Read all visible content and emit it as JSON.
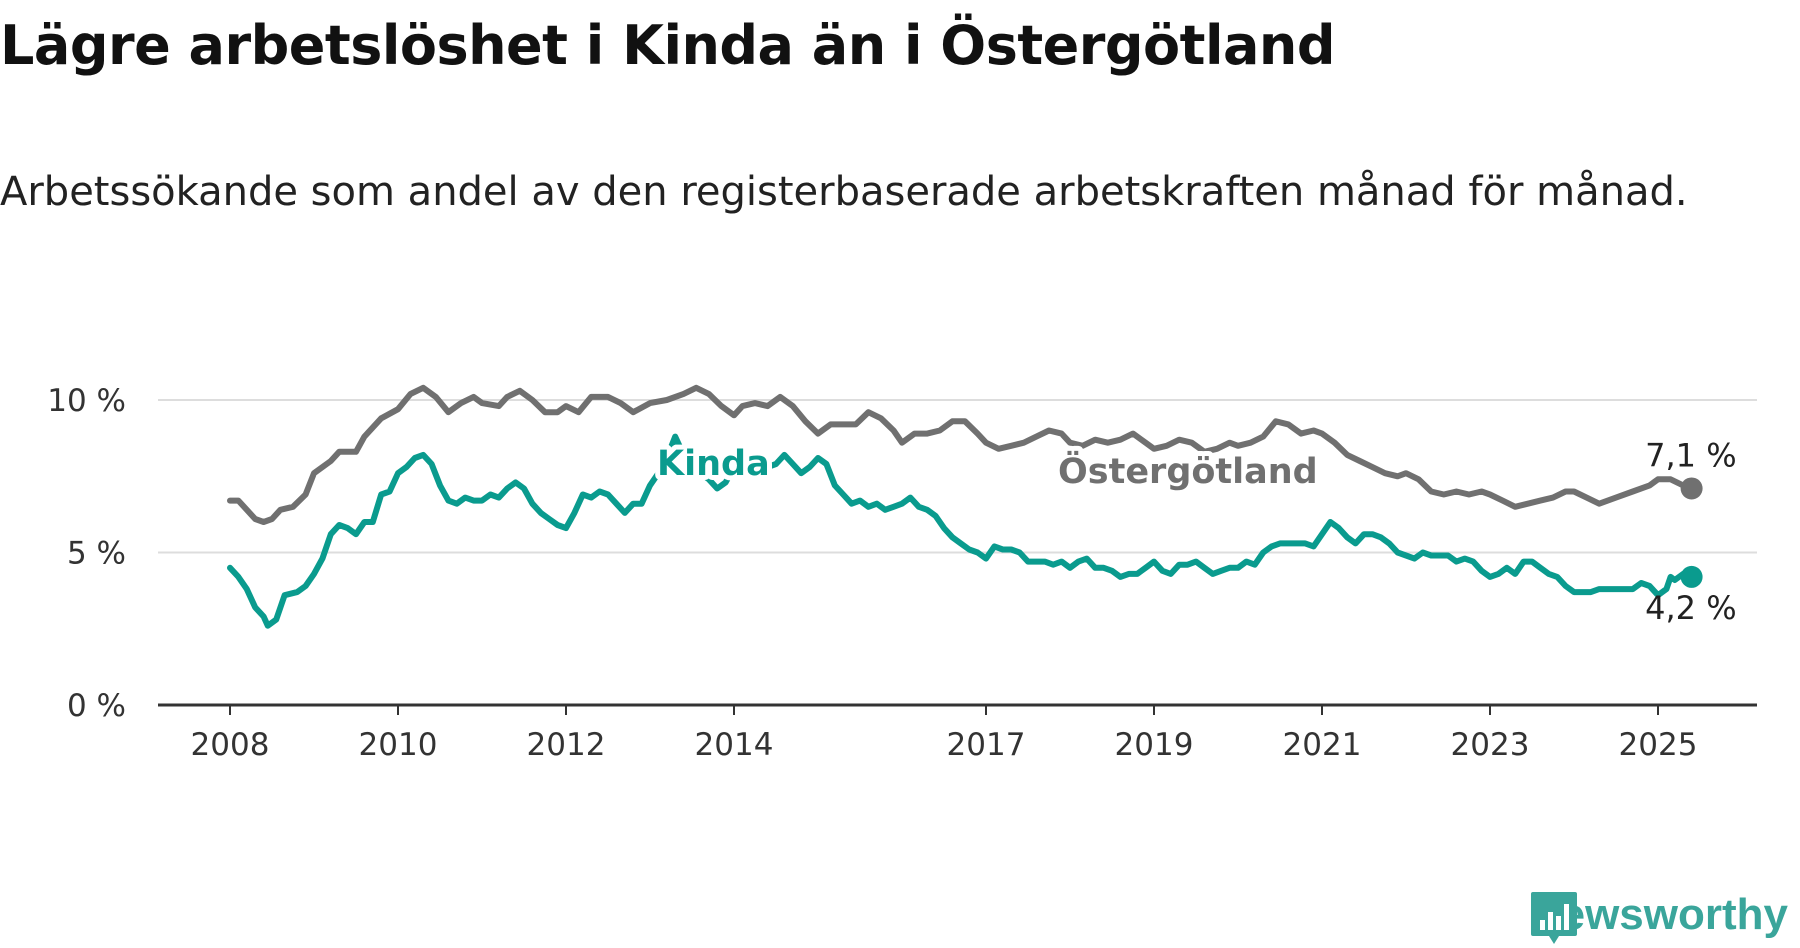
{
  "title": "Lägre arbetslöshet i Kinda än i Östergötland",
  "subtitle": "Arbetssökande som andel av den registerbaserade arbetskraften månad för månad.",
  "brand": "Newsworthy",
  "colors": {
    "kinda": "#0a9b8e",
    "ostergotland": "#707070",
    "grid": "#dddddd",
    "axis": "#333333",
    "brand": "#3aa59b"
  },
  "chart_data": {
    "type": "line",
    "ylim": [
      0,
      10
    ],
    "yticks": [
      0,
      5,
      10
    ],
    "ytick_labels": [
      "0 %",
      "5 %",
      "10 %"
    ],
    "xlim": [
      2008.0,
      2025.5
    ],
    "xticks": [
      2008,
      2010,
      2012,
      2014,
      2017,
      2019,
      2021,
      2023,
      2025
    ],
    "xtick_labels": [
      "2008",
      "2010",
      "2012",
      "2014",
      "2017",
      "2019",
      "2021",
      "2023",
      "2025"
    ],
    "grid": true,
    "series": [
      {
        "name": "Östergötland",
        "color": "#707070",
        "end_label": "7,1 %",
        "points": [
          [
            2008.0,
            6.7
          ],
          [
            2008.1,
            6.7
          ],
          [
            2008.3,
            6.1
          ],
          [
            2008.4,
            6.0
          ],
          [
            2008.5,
            6.1
          ],
          [
            2008.6,
            6.4
          ],
          [
            2008.75,
            6.5
          ],
          [
            2008.9,
            6.9
          ],
          [
            2009.0,
            7.6
          ],
          [
            2009.2,
            8.0
          ],
          [
            2009.3,
            8.3
          ],
          [
            2009.5,
            8.3
          ],
          [
            2009.6,
            8.8
          ],
          [
            2009.8,
            9.4
          ],
          [
            2010.0,
            9.7
          ],
          [
            2010.15,
            10.2
          ],
          [
            2010.3,
            10.4
          ],
          [
            2010.45,
            10.1
          ],
          [
            2010.6,
            9.6
          ],
          [
            2010.75,
            9.9
          ],
          [
            2010.9,
            10.1
          ],
          [
            2011.0,
            9.9
          ],
          [
            2011.2,
            9.8
          ],
          [
            2011.3,
            10.1
          ],
          [
            2011.45,
            10.3
          ],
          [
            2011.6,
            10.0
          ],
          [
            2011.75,
            9.6
          ],
          [
            2011.9,
            9.6
          ],
          [
            2012.0,
            9.8
          ],
          [
            2012.15,
            9.6
          ],
          [
            2012.3,
            10.1
          ],
          [
            2012.5,
            10.1
          ],
          [
            2012.65,
            9.9
          ],
          [
            2012.8,
            9.6
          ],
          [
            2013.0,
            9.9
          ],
          [
            2013.2,
            10.0
          ],
          [
            2013.4,
            10.2
          ],
          [
            2013.55,
            10.4
          ],
          [
            2013.7,
            10.2
          ],
          [
            2013.85,
            9.8
          ],
          [
            2014.0,
            9.5
          ],
          [
            2014.1,
            9.8
          ],
          [
            2014.25,
            9.9
          ],
          [
            2014.4,
            9.8
          ],
          [
            2014.55,
            10.1
          ],
          [
            2014.7,
            9.8
          ],
          [
            2014.85,
            9.3
          ],
          [
            2015.0,
            8.9
          ],
          [
            2015.15,
            9.2
          ],
          [
            2015.3,
            9.2
          ],
          [
            2015.45,
            9.2
          ],
          [
            2015.6,
            9.6
          ],
          [
            2015.75,
            9.4
          ],
          [
            2015.9,
            9.0
          ],
          [
            2016.0,
            8.6
          ],
          [
            2016.15,
            8.9
          ],
          [
            2016.3,
            8.9
          ],
          [
            2016.45,
            9.0
          ],
          [
            2016.6,
            9.3
          ],
          [
            2016.75,
            9.3
          ],
          [
            2016.9,
            8.9
          ],
          [
            2017.0,
            8.6
          ],
          [
            2017.15,
            8.4
          ],
          [
            2017.3,
            8.5
          ],
          [
            2017.45,
            8.6
          ],
          [
            2017.6,
            8.8
          ],
          [
            2017.75,
            9.0
          ],
          [
            2017.9,
            8.9
          ],
          [
            2018.0,
            8.6
          ],
          [
            2018.15,
            8.5
          ],
          [
            2018.3,
            8.7
          ],
          [
            2018.45,
            8.6
          ],
          [
            2018.6,
            8.7
          ],
          [
            2018.75,
            8.9
          ],
          [
            2018.9,
            8.6
          ],
          [
            2019.0,
            8.4
          ],
          [
            2019.15,
            8.5
          ],
          [
            2019.3,
            8.7
          ],
          [
            2019.45,
            8.6
          ],
          [
            2019.6,
            8.3
          ],
          [
            2019.75,
            8.4
          ],
          [
            2019.9,
            8.6
          ],
          [
            2020.0,
            8.5
          ],
          [
            2020.15,
            8.6
          ],
          [
            2020.3,
            8.8
          ],
          [
            2020.45,
            9.3
          ],
          [
            2020.6,
            9.2
          ],
          [
            2020.75,
            8.9
          ],
          [
            2020.9,
            9.0
          ],
          [
            2021.0,
            8.9
          ],
          [
            2021.15,
            8.6
          ],
          [
            2021.3,
            8.2
          ],
          [
            2021.45,
            8.0
          ],
          [
            2021.6,
            7.8
          ],
          [
            2021.75,
            7.6
          ],
          [
            2021.9,
            7.5
          ],
          [
            2022.0,
            7.6
          ],
          [
            2022.15,
            7.4
          ],
          [
            2022.3,
            7.0
          ],
          [
            2022.45,
            6.9
          ],
          [
            2022.6,
            7.0
          ],
          [
            2022.75,
            6.9
          ],
          [
            2022.9,
            7.0
          ],
          [
            2023.0,
            6.9
          ],
          [
            2023.15,
            6.7
          ],
          [
            2023.3,
            6.5
          ],
          [
            2023.45,
            6.6
          ],
          [
            2023.6,
            6.7
          ],
          [
            2023.75,
            6.8
          ],
          [
            2023.9,
            7.0
          ],
          [
            2024.0,
            7.0
          ],
          [
            2024.15,
            6.8
          ],
          [
            2024.3,
            6.6
          ],
          [
            2024.5,
            6.8
          ],
          [
            2024.7,
            7.0
          ],
          [
            2024.9,
            7.2
          ],
          [
            2025.0,
            7.4
          ],
          [
            2025.15,
            7.4
          ],
          [
            2025.3,
            7.2
          ],
          [
            2025.4,
            7.1
          ]
        ]
      },
      {
        "name": "Kinda",
        "color": "#0a9b8e",
        "end_label": "4,2 %",
        "points": [
          [
            2008.0,
            4.5
          ],
          [
            2008.1,
            4.2
          ],
          [
            2008.2,
            3.8
          ],
          [
            2008.3,
            3.2
          ],
          [
            2008.4,
            2.9
          ],
          [
            2008.45,
            2.6
          ],
          [
            2008.55,
            2.8
          ],
          [
            2008.65,
            3.6
          ],
          [
            2008.8,
            3.7
          ],
          [
            2008.9,
            3.9
          ],
          [
            2009.0,
            4.3
          ],
          [
            2009.1,
            4.8
          ],
          [
            2009.2,
            5.6
          ],
          [
            2009.3,
            5.9
          ],
          [
            2009.4,
            5.8
          ],
          [
            2009.5,
            5.6
          ],
          [
            2009.6,
            6.0
          ],
          [
            2009.7,
            6.0
          ],
          [
            2009.8,
            6.9
          ],
          [
            2009.9,
            7.0
          ],
          [
            2010.0,
            7.6
          ],
          [
            2010.1,
            7.8
          ],
          [
            2010.2,
            8.1
          ],
          [
            2010.3,
            8.2
          ],
          [
            2010.4,
            7.9
          ],
          [
            2010.5,
            7.2
          ],
          [
            2010.6,
            6.7
          ],
          [
            2010.7,
            6.6
          ],
          [
            2010.8,
            6.8
          ],
          [
            2010.9,
            6.7
          ],
          [
            2011.0,
            6.7
          ],
          [
            2011.1,
            6.9
          ],
          [
            2011.2,
            6.8
          ],
          [
            2011.3,
            7.1
          ],
          [
            2011.4,
            7.3
          ],
          [
            2011.5,
            7.1
          ],
          [
            2011.6,
            6.6
          ],
          [
            2011.7,
            6.3
          ],
          [
            2011.8,
            6.1
          ],
          [
            2011.9,
            5.9
          ],
          [
            2012.0,
            5.8
          ],
          [
            2012.1,
            6.3
          ],
          [
            2012.2,
            6.9
          ],
          [
            2012.3,
            6.8
          ],
          [
            2012.4,
            7.0
          ],
          [
            2012.5,
            6.9
          ],
          [
            2012.6,
            6.6
          ],
          [
            2012.7,
            6.3
          ],
          [
            2012.8,
            6.6
          ],
          [
            2012.9,
            6.6
          ],
          [
            2013.0,
            7.2
          ],
          [
            2013.1,
            7.6
          ],
          [
            2013.2,
            8.1
          ],
          [
            2013.3,
            8.8
          ],
          [
            2013.4,
            8.2
          ],
          [
            2013.5,
            7.9
          ],
          [
            2013.6,
            7.6
          ],
          [
            2013.7,
            7.4
          ],
          [
            2013.8,
            7.1
          ],
          [
            2013.9,
            7.3
          ],
          [
            2014.0,
            7.8
          ],
          [
            2014.1,
            7.6
          ],
          [
            2014.2,
            7.9
          ],
          [
            2014.3,
            8.0
          ],
          [
            2014.4,
            7.8
          ],
          [
            2014.5,
            7.9
          ],
          [
            2014.6,
            8.2
          ],
          [
            2014.7,
            7.9
          ],
          [
            2014.8,
            7.6
          ],
          [
            2014.9,
            7.8
          ],
          [
            2015.0,
            8.1
          ],
          [
            2015.1,
            7.9
          ],
          [
            2015.2,
            7.2
          ],
          [
            2015.3,
            6.9
          ],
          [
            2015.4,
            6.6
          ],
          [
            2015.5,
            6.7
          ],
          [
            2015.6,
            6.5
          ],
          [
            2015.7,
            6.6
          ],
          [
            2015.8,
            6.4
          ],
          [
            2015.9,
            6.5
          ],
          [
            2016.0,
            6.6
          ],
          [
            2016.1,
            6.8
          ],
          [
            2016.2,
            6.5
          ],
          [
            2016.3,
            6.4
          ],
          [
            2016.4,
            6.2
          ],
          [
            2016.5,
            5.8
          ],
          [
            2016.6,
            5.5
          ],
          [
            2016.7,
            5.3
          ],
          [
            2016.8,
            5.1
          ],
          [
            2016.9,
            5.0
          ],
          [
            2017.0,
            4.8
          ],
          [
            2017.1,
            5.2
          ],
          [
            2017.2,
            5.1
          ],
          [
            2017.3,
            5.1
          ],
          [
            2017.4,
            5.0
          ],
          [
            2017.5,
            4.7
          ],
          [
            2017.6,
            4.7
          ],
          [
            2017.7,
            4.7
          ],
          [
            2017.8,
            4.6
          ],
          [
            2017.9,
            4.7
          ],
          [
            2018.0,
            4.5
          ],
          [
            2018.1,
            4.7
          ],
          [
            2018.2,
            4.8
          ],
          [
            2018.3,
            4.5
          ],
          [
            2018.4,
            4.5
          ],
          [
            2018.5,
            4.4
          ],
          [
            2018.6,
            4.2
          ],
          [
            2018.7,
            4.3
          ],
          [
            2018.8,
            4.3
          ],
          [
            2018.9,
            4.5
          ],
          [
            2019.0,
            4.7
          ],
          [
            2019.1,
            4.4
          ],
          [
            2019.2,
            4.3
          ],
          [
            2019.3,
            4.6
          ],
          [
            2019.4,
            4.6
          ],
          [
            2019.5,
            4.7
          ],
          [
            2019.6,
            4.5
          ],
          [
            2019.7,
            4.3
          ],
          [
            2019.8,
            4.4
          ],
          [
            2019.9,
            4.5
          ],
          [
            2020.0,
            4.5
          ],
          [
            2020.1,
            4.7
          ],
          [
            2020.2,
            4.6
          ],
          [
            2020.3,
            5.0
          ],
          [
            2020.4,
            5.2
          ],
          [
            2020.5,
            5.3
          ],
          [
            2020.6,
            5.3
          ],
          [
            2020.7,
            5.3
          ],
          [
            2020.8,
            5.3
          ],
          [
            2020.9,
            5.2
          ],
          [
            2021.0,
            5.6
          ],
          [
            2021.1,
            6.0
          ],
          [
            2021.2,
            5.8
          ],
          [
            2021.3,
            5.5
          ],
          [
            2021.4,
            5.3
          ],
          [
            2021.5,
            5.6
          ],
          [
            2021.6,
            5.6
          ],
          [
            2021.7,
            5.5
          ],
          [
            2021.8,
            5.3
          ],
          [
            2021.9,
            5.0
          ],
          [
            2022.0,
            4.9
          ],
          [
            2022.1,
            4.8
          ],
          [
            2022.2,
            5.0
          ],
          [
            2022.3,
            4.9
          ],
          [
            2022.4,
            4.9
          ],
          [
            2022.5,
            4.9
          ],
          [
            2022.6,
            4.7
          ],
          [
            2022.7,
            4.8
          ],
          [
            2022.8,
            4.7
          ],
          [
            2022.9,
            4.4
          ],
          [
            2023.0,
            4.2
          ],
          [
            2023.1,
            4.3
          ],
          [
            2023.2,
            4.5
          ],
          [
            2023.3,
            4.3
          ],
          [
            2023.4,
            4.7
          ],
          [
            2023.5,
            4.7
          ],
          [
            2023.6,
            4.5
          ],
          [
            2023.7,
            4.3
          ],
          [
            2023.8,
            4.2
          ],
          [
            2023.9,
            3.9
          ],
          [
            2024.0,
            3.7
          ],
          [
            2024.1,
            3.7
          ],
          [
            2024.2,
            3.7
          ],
          [
            2024.3,
            3.8
          ],
          [
            2024.5,
            3.8
          ],
          [
            2024.7,
            3.8
          ],
          [
            2024.8,
            4.0
          ],
          [
            2024.9,
            3.9
          ],
          [
            2025.0,
            3.6
          ],
          [
            2025.1,
            3.8
          ],
          [
            2025.15,
            4.2
          ],
          [
            2025.2,
            4.1
          ],
          [
            2025.3,
            4.3
          ],
          [
            2025.4,
            4.2
          ]
        ]
      }
    ]
  }
}
